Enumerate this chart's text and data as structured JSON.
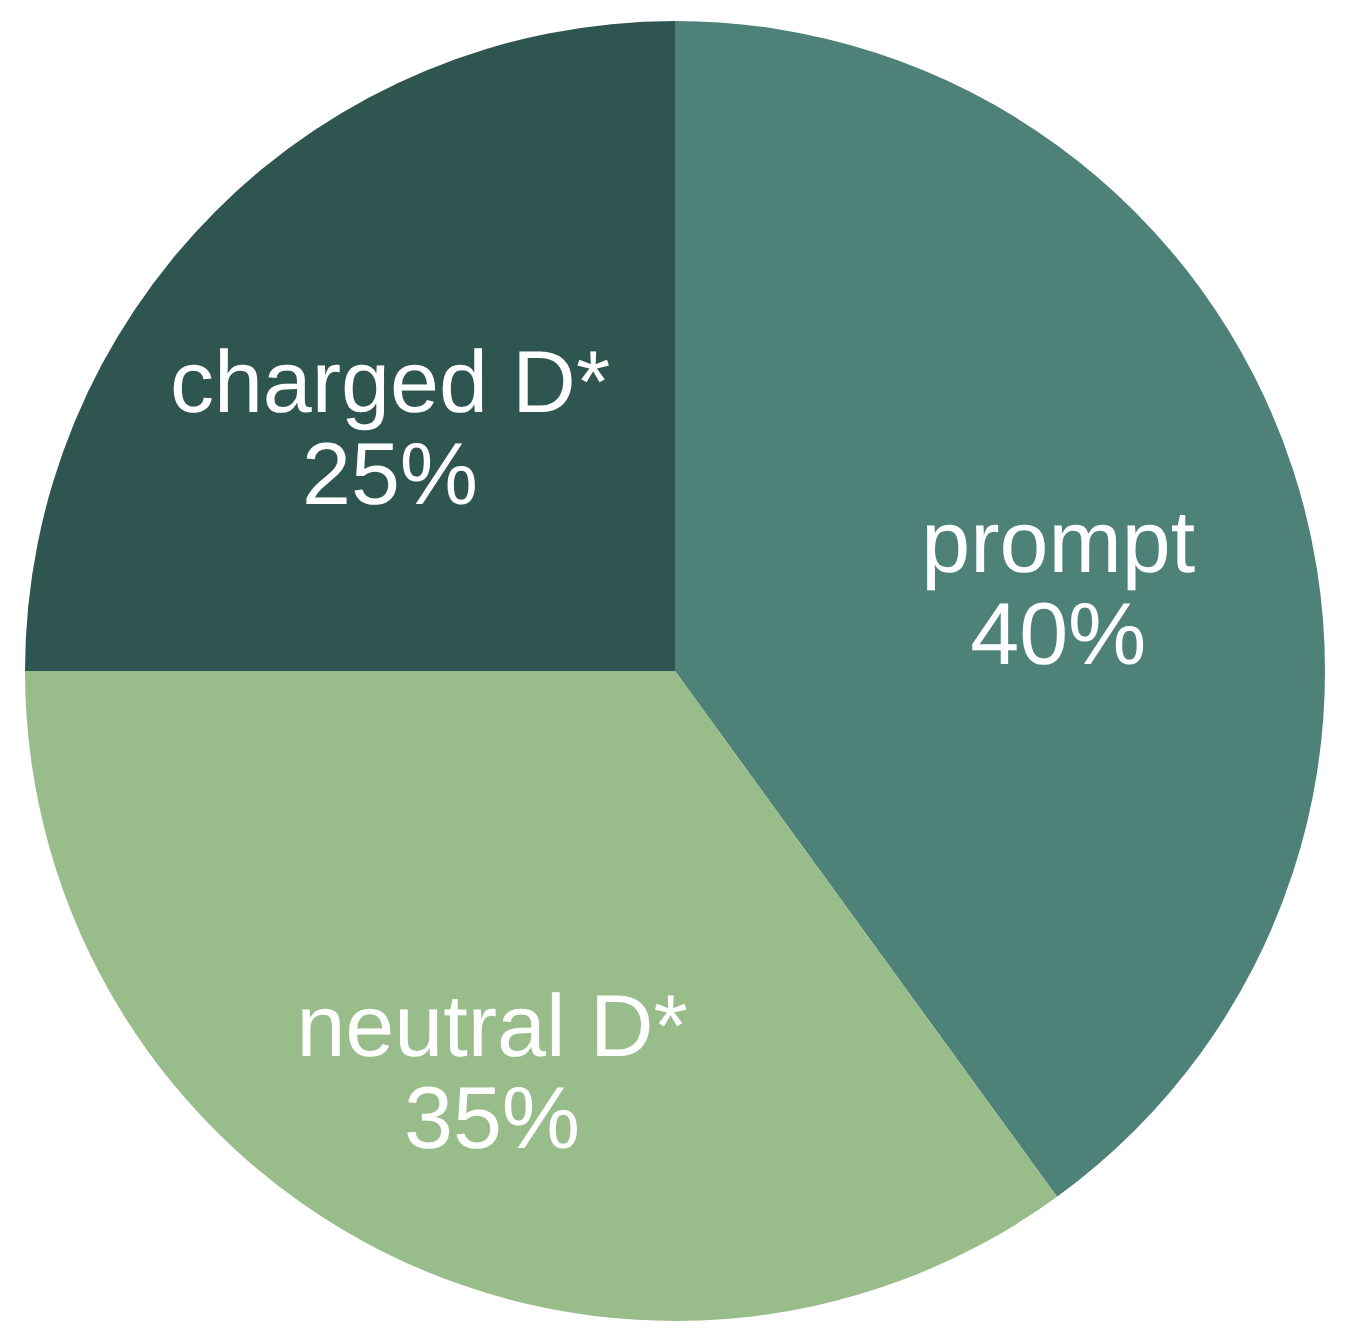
{
  "chart_data": {
    "type": "pie",
    "categories": [
      "prompt",
      "neutral D*",
      "charged D*"
    ],
    "values": [
      40,
      35,
      25
    ],
    "colors": [
      "#4e8278",
      "#98bd8a",
      "#2f5550"
    ],
    "value_labels": [
      "40%",
      "35%",
      "25%"
    ]
  }
}
